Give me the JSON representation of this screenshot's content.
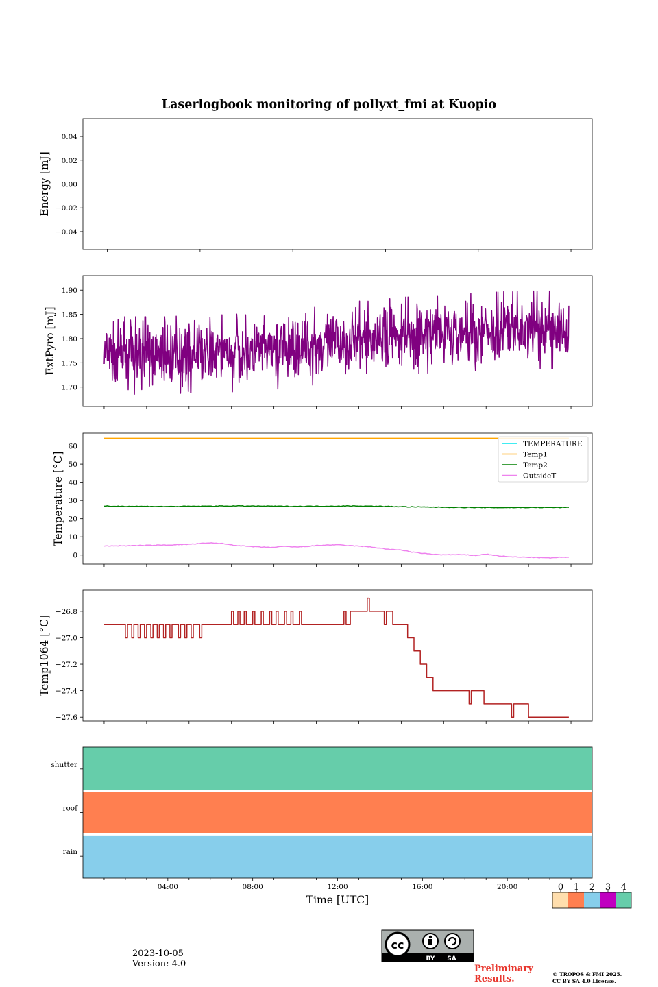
{
  "title": "Laserlogbook monitoring of pollyxt_fmi at Kuopio",
  "date": "2023-10-05",
  "version": "Version: 4.0",
  "preliminary": [
    "Preliminary",
    "Results."
  ],
  "copyright": [
    "© TROPOS & FMI 2025.",
    "CC BY SA 4.0 License."
  ],
  "license_badge": {
    "by": "BY",
    "sa": "SA"
  },
  "colors": {
    "extpyro": "#800080",
    "temperature": "#00e5ee",
    "temp1": "#ffa500",
    "temp2": "#008000",
    "outsideT": "#ee82ee",
    "temp1064": "#b22222",
    "status": [
      "#ffdead",
      "#ff7f50",
      "#87ceeb",
      "#c000c0",
      "#66cdaa"
    ]
  },
  "chart_data": [
    {
      "id": "energy",
      "type": "line",
      "ylabel": "Energy [mJ]",
      "ylim": [
        -0.055,
        0.055
      ],
      "yticks": [
        0.04,
        0.02,
        0.0,
        -0.02,
        -0.04
      ],
      "yticklabels": [
        "0.04",
        "0.02",
        "0.00",
        "−0.02",
        "−0.04"
      ],
      "xlim": [
        0,
        24
      ],
      "series": []
    },
    {
      "id": "extpyro",
      "type": "line",
      "ylabel": "ExtPyro [mJ]",
      "ylim": [
        1.66,
        1.93
      ],
      "yticks": [
        1.9,
        1.85,
        1.8,
        1.75,
        1.7
      ],
      "yticklabels": [
        "1.90",
        "1.85",
        "1.80",
        "1.75",
        "1.70"
      ],
      "xlim": [
        0,
        24
      ],
      "series": [
        {
          "name": "ExtPyro",
          "color_key": "extpyro",
          "x": [
            1.0,
            2.0,
            3.0,
            4.0,
            5.0,
            6.0,
            7.0,
            8.0,
            9.0,
            10.0,
            11.0,
            12.0,
            13.0,
            14.0,
            15.0,
            16.0,
            17.0,
            18.0,
            19.0,
            20.0,
            21.0,
            22.0,
            22.9
          ],
          "mean": [
            1.765,
            1.765,
            1.765,
            1.765,
            1.768,
            1.768,
            1.77,
            1.772,
            1.775,
            1.78,
            1.785,
            1.79,
            1.795,
            1.8,
            1.805,
            1.808,
            1.81,
            1.812,
            1.815,
            1.817,
            1.818,
            1.818,
            1.815
          ],
          "min": 1.67,
          "max": 1.913,
          "points": 1200
        }
      ]
    },
    {
      "id": "temperature",
      "type": "line",
      "ylabel": "Temperature [°C]",
      "ylim": [
        -5,
        67
      ],
      "yticks": [
        60,
        50,
        40,
        30,
        20,
        10,
        0
      ],
      "yticklabels": [
        "60",
        "50",
        "40",
        "30",
        "20",
        "10",
        "0"
      ],
      "xlim": [
        0,
        24
      ],
      "legend": [
        "TEMPERATURE",
        "Temp1",
        "Temp2",
        "OutsideT"
      ],
      "legend_loc": "upper right",
      "series": [
        {
          "name": "TEMPERATURE",
          "color_key": "temperature",
          "x": [],
          "values": []
        },
        {
          "name": "Temp1",
          "color_key": "temp1",
          "x": [
            1.0,
            22.9
          ],
          "values": [
            64.2,
            64.2
          ]
        },
        {
          "name": "Temp2",
          "color_key": "temp2",
          "x": [
            1.0,
            4.0,
            7.0,
            10.0,
            13.0,
            16.0,
            19.0,
            22.9
          ],
          "values": [
            26.9,
            26.7,
            27.0,
            26.8,
            27.0,
            26.4,
            26.1,
            26.2
          ]
        },
        {
          "name": "OutsideT",
          "color_key": "outsideT",
          "x": [
            1.0,
            2.0,
            3.0,
            4.0,
            5.0,
            5.5,
            6.0,
            6.5,
            7.0,
            7.5,
            8.0,
            8.5,
            9.0,
            9.5,
            10.0,
            10.5,
            11.0,
            11.5,
            12.0,
            12.5,
            13.0,
            13.5,
            14.0,
            14.5,
            15.0,
            15.5,
            16.0,
            16.5,
            17.0,
            17.5,
            18.0,
            18.5,
            19.0,
            19.5,
            20.0,
            20.5,
            21.0,
            21.5,
            22.0,
            22.5,
            22.9
          ],
          "values": [
            5.0,
            5.1,
            5.3,
            5.5,
            5.9,
            6.3,
            6.6,
            6.4,
            5.6,
            5.0,
            4.6,
            4.3,
            4.2,
            4.8,
            4.4,
            4.7,
            5.2,
            5.5,
            5.6,
            5.2,
            4.9,
            4.5,
            3.8,
            3.0,
            2.8,
            1.6,
            0.9,
            0.4,
            0.1,
            0.2,
            0.1,
            -0.2,
            0.5,
            -0.3,
            -0.9,
            -1.1,
            -1.2,
            -1.4,
            -1.6,
            -1.2,
            -1.3
          ]
        }
      ]
    },
    {
      "id": "temp1064",
      "type": "line",
      "ylabel": "Temp1064 [°C]",
      "ylim": [
        -27.63,
        -26.64
      ],
      "yticks": [
        -26.8,
        -27.0,
        -27.2,
        -27.4,
        -27.6
      ],
      "yticklabels": [
        "−26.8",
        "−27.0",
        "−27.2",
        "−27.4",
        "−27.6"
      ],
      "xlim": [
        0,
        24
      ],
      "series": [
        {
          "name": "Temp1064",
          "color_key": "temp1064",
          "x": [
            1.0,
            1.8,
            2.0,
            2.1,
            2.3,
            2.4,
            2.6,
            2.7,
            2.9,
            3.0,
            3.2,
            3.3,
            3.5,
            3.6,
            3.8,
            3.9,
            4.1,
            4.2,
            4.5,
            4.6,
            4.8,
            4.9,
            5.1,
            5.2,
            5.5,
            5.6,
            6.3,
            7.0,
            7.1,
            7.3,
            7.4,
            7.6,
            7.7,
            8.0,
            8.1,
            8.4,
            8.5,
            8.8,
            8.9,
            9.1,
            9.2,
            9.5,
            9.6,
            9.8,
            9.9,
            10.2,
            10.3,
            11.0,
            12.0,
            12.3,
            12.4,
            12.6,
            12.7,
            13.4,
            13.5,
            13.6,
            14.0,
            14.2,
            14.3,
            14.6,
            14.7,
            15.3,
            15.6,
            15.9,
            16.2,
            16.5,
            16.9,
            17.4,
            18.0,
            18.2,
            18.3,
            18.9,
            19.7,
            20.2,
            20.3,
            21.0,
            22.9
          ],
          "values": [
            -26.9,
            -26.9,
            -27.0,
            -26.9,
            -27.0,
            -26.9,
            -27.0,
            -26.9,
            -27.0,
            -26.9,
            -27.0,
            -26.9,
            -27.0,
            -26.9,
            -27.0,
            -26.9,
            -27.0,
            -26.9,
            -27.0,
            -26.9,
            -27.0,
            -26.9,
            -27.0,
            -26.9,
            -27.0,
            -26.9,
            -26.9,
            -26.8,
            -26.9,
            -26.8,
            -26.9,
            -26.8,
            -26.9,
            -26.8,
            -26.9,
            -26.8,
            -26.9,
            -26.8,
            -26.9,
            -26.8,
            -26.9,
            -26.8,
            -26.9,
            -26.8,
            -26.9,
            -26.8,
            -26.9,
            -26.9,
            -26.9,
            -26.8,
            -26.9,
            -26.8,
            -26.8,
            -26.7,
            -26.8,
            -26.8,
            -26.8,
            -26.9,
            -26.8,
            -26.9,
            -26.9,
            -27.0,
            -27.1,
            -27.2,
            -27.3,
            -27.4,
            -27.4,
            -27.4,
            -27.4,
            -27.5,
            -27.4,
            -27.5,
            -27.5,
            -27.6,
            -27.5,
            -27.6,
            -27.6
          ]
        }
      ]
    },
    {
      "id": "status",
      "type": "heatmap",
      "rows": [
        "shutter",
        "roof",
        "rain"
      ],
      "row_values": [
        4,
        1,
        2
      ],
      "xlim": [
        0,
        24
      ],
      "xticks": [
        4,
        8,
        12,
        16,
        20
      ],
      "xticklabels": [
        "04:00",
        "08:00",
        "12:00",
        "16:00",
        "20:00"
      ],
      "xlabel": "Time [UTC]",
      "colorbar": {
        "ticks": [
          "0",
          "1",
          "2",
          "3",
          "4"
        ]
      }
    }
  ]
}
